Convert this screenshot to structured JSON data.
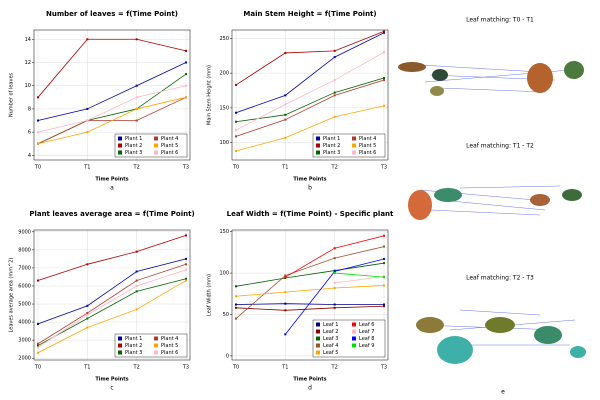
{
  "chart_data": [
    {
      "type": "line",
      "title": "Number of leaves = f(Time Point)",
      "y_label": "Number of leaves",
      "x_label": "Time Points",
      "caption": "a",
      "categories": [
        "T0",
        "T1",
        "T2",
        "T3"
      ],
      "ylim": [
        3.6,
        14.8
      ],
      "yticks": [
        4,
        6,
        8,
        10,
        12,
        14
      ],
      "grid": true,
      "legend": "lower right",
      "series": [
        {
          "name": "Plant 1",
          "color": "#0000aa",
          "values": [
            7,
            8,
            10,
            12
          ]
        },
        {
          "name": "Plant 2",
          "color": "#aa0000",
          "values": [
            9,
            14,
            14,
            13
          ]
        },
        {
          "name": "Plant 3",
          "color": "#006400",
          "values": [
            5,
            7,
            8,
            11
          ]
        },
        {
          "name": "Plant 4",
          "color": "#b03a2e",
          "values": [
            5,
            7,
            7,
            9
          ]
        },
        {
          "name": "Plant 5",
          "color": "#ffa500",
          "values": [
            5,
            6,
            8,
            9
          ]
        },
        {
          "name": "Plant 6",
          "color": "#ffb6c1",
          "values": [
            6,
            7,
            9,
            10
          ]
        }
      ]
    },
    {
      "type": "line",
      "title": "Main Stem Height = f(Time Point)",
      "y_label": "Main Stem Height (mm)",
      "x_label": "Time Points",
      "caption": "b",
      "categories": [
        "T0",
        "T1",
        "T2",
        "T3"
      ],
      "ylim": [
        75,
        262
      ],
      "yticks": [
        100,
        150,
        200,
        250
      ],
      "grid": true,
      "legend": "lower right",
      "series": [
        {
          "name": "Plant 1",
          "color": "#0000aa",
          "values": [
            143,
            168,
            223,
            258
          ]
        },
        {
          "name": "Plant 2",
          "color": "#aa0000",
          "values": [
            183,
            229,
            232,
            260
          ]
        },
        {
          "name": "Plant 3",
          "color": "#006400",
          "values": [
            130,
            140,
            172,
            193
          ]
        },
        {
          "name": "Plant 4",
          "color": "#b03a2e",
          "values": [
            109,
            133,
            168,
            190
          ]
        },
        {
          "name": "Plant 5",
          "color": "#ffa500",
          "values": [
            88,
            107,
            137,
            153
          ]
        },
        {
          "name": "Plant 6",
          "color": "#ffb6c1",
          "values": [
            118,
            155,
            190,
            230
          ]
        }
      ]
    },
    {
      "type": "line",
      "title": "Plant leaves average area = f(Time Point)",
      "y_label": "Leaves average area (mm^2)",
      "x_label": "Time Points",
      "caption": "c",
      "categories": [
        "T0",
        "T1",
        "T2",
        "T3"
      ],
      "ylim": [
        1900,
        9100
      ],
      "yticks": [
        2000,
        3000,
        4000,
        5000,
        6000,
        7000,
        8000,
        9000
      ],
      "grid": true,
      "legend": "lower right",
      "series": [
        {
          "name": "Plant 1",
          "color": "#0000aa",
          "values": [
            3900,
            4900,
            6800,
            7500
          ]
        },
        {
          "name": "Plant 2",
          "color": "#aa0000",
          "values": [
            6300,
            7200,
            7900,
            8800
          ]
        },
        {
          "name": "Plant 3",
          "color": "#006400",
          "values": [
            2700,
            4200,
            5700,
            6400
          ]
        },
        {
          "name": "Plant 4",
          "color": "#b03a2e",
          "values": [
            2800,
            4500,
            6300,
            7200
          ]
        },
        {
          "name": "Plant 5",
          "color": "#ffa500",
          "values": [
            2300,
            3700,
            4700,
            6300
          ]
        },
        {
          "name": "Plant 6",
          "color": "#ffb6c1",
          "values": [
            2600,
            4400,
            6000,
            6900
          ]
        }
      ]
    },
    {
      "type": "line",
      "title": "Leaf Width = f(Time Point) - Specific plant",
      "y_label": "Leaf Width (mm)",
      "x_label": "Time Points",
      "caption": "d",
      "categories": [
        "T0",
        "T1",
        "T2",
        "T3"
      ],
      "ylim": [
        -5,
        152
      ],
      "yticks": [
        0,
        50,
        100,
        150
      ],
      "grid": true,
      "legend": "lower right",
      "series": [
        {
          "name": "Leaf 1",
          "color": "#00008b",
          "values": [
            62,
            63,
            62,
            62
          ]
        },
        {
          "name": "Leaf 2",
          "color": "#8b0000",
          "values": [
            58,
            55,
            58,
            60
          ]
        },
        {
          "name": "Leaf 3",
          "color": "#006400",
          "values": [
            84,
            94,
            103,
            112
          ]
        },
        {
          "name": "Leaf 4",
          "color": "#a0522d",
          "values": [
            45,
            97,
            118,
            132
          ]
        },
        {
          "name": "Leaf 5",
          "color": "#ffa500",
          "values": [
            72,
            77,
            82,
            85
          ]
        },
        {
          "name": "Leaf 6",
          "color": "#ff0000",
          "values": [
            null,
            95,
            130,
            145
          ]
        },
        {
          "name": "Leaf 7",
          "color": "#ffb6c1",
          "values": [
            null,
            null,
            88,
            96
          ]
        },
        {
          "name": "Leaf 8",
          "color": "#0000ff",
          "values": [
            null,
            26,
            102,
            117
          ]
        },
        {
          "name": "Leaf 9",
          "color": "#00e000",
          "values": [
            null,
            null,
            100,
            95
          ]
        }
      ]
    }
  ],
  "panel_e": {
    "titles": [
      "Leaf matching: T0 - T1",
      "Leaf matching: T1 - T2",
      "Leaf matching: T2 - T3"
    ],
    "caption": "e"
  }
}
